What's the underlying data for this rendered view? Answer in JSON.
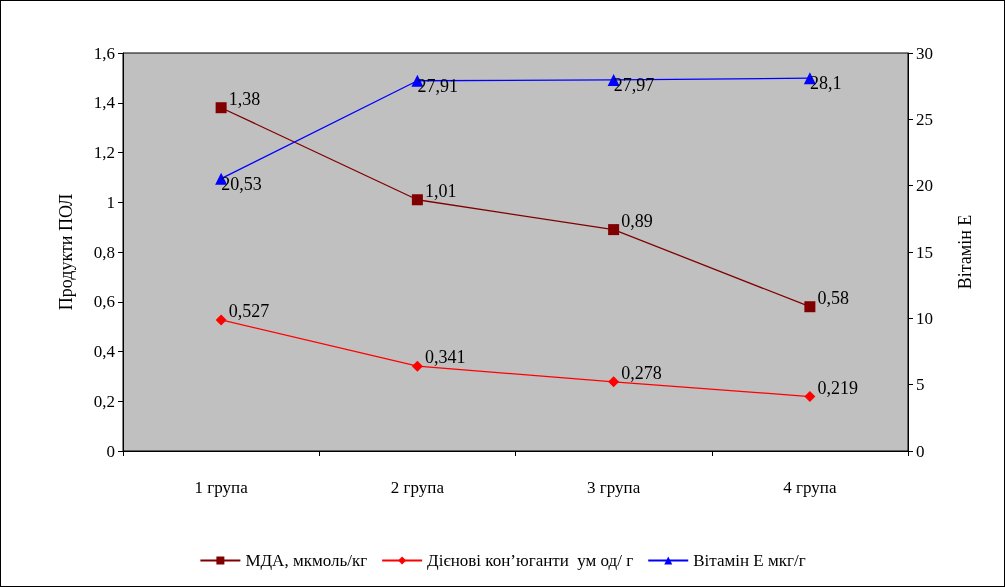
{
  "chart_data": {
    "type": "line",
    "categories": [
      "1 група",
      "2 група",
      "3 група",
      "4 група"
    ],
    "ylabel": "Продукти ПОЛ",
    "y2label": "Вітамін Е",
    "ylim": [
      0,
      1.6
    ],
    "yticks": [
      0,
      {
        "value": 0.2,
        "label": "0,2"
      },
      {
        "value": 0.4,
        "label": "0,4"
      },
      {
        "value": 0.6,
        "label": "0,6"
      },
      {
        "value": 0.8,
        "label": "0,8"
      },
      1,
      {
        "value": 1.2,
        "label": "1,2"
      },
      {
        "value": 1.4,
        "label": "1,4"
      },
      {
        "value": 1.6,
        "label": "1,6"
      }
    ],
    "y2lim": [
      0,
      30
    ],
    "y2ticks": [
      0,
      5,
      10,
      15,
      20,
      25,
      30
    ],
    "grid": false,
    "legend": "bottom",
    "series": [
      {
        "name": "МДА, мкмоль/кг",
        "color": "#800000",
        "marker": "square",
        "values": [
          1.38,
          1.01,
          0.89,
          0.58
        ],
        "value_labels": [
          "1,38",
          "1,01",
          "0,89",
          "0,58"
        ]
      },
      {
        "name": "Дієнові кон’юганти  ум од/ г",
        "color": "#ff0000",
        "marker": "diamond",
        "values": [
          0.527,
          0.341,
          0.278,
          0.219
        ],
        "value_labels": [
          "0,527",
          "0,341",
          "0,278",
          "0,219"
        ]
      },
      {
        "name": "Вітамін Е мкг/г",
        "color": "#0000ff",
        "marker": "triangle",
        "axis": "y2",
        "values": [
          20.53,
          27.91,
          27.97,
          28.1
        ],
        "value_labels": [
          "20,53",
          "27,91",
          "27,97",
          "28,1"
        ]
      }
    ]
  }
}
